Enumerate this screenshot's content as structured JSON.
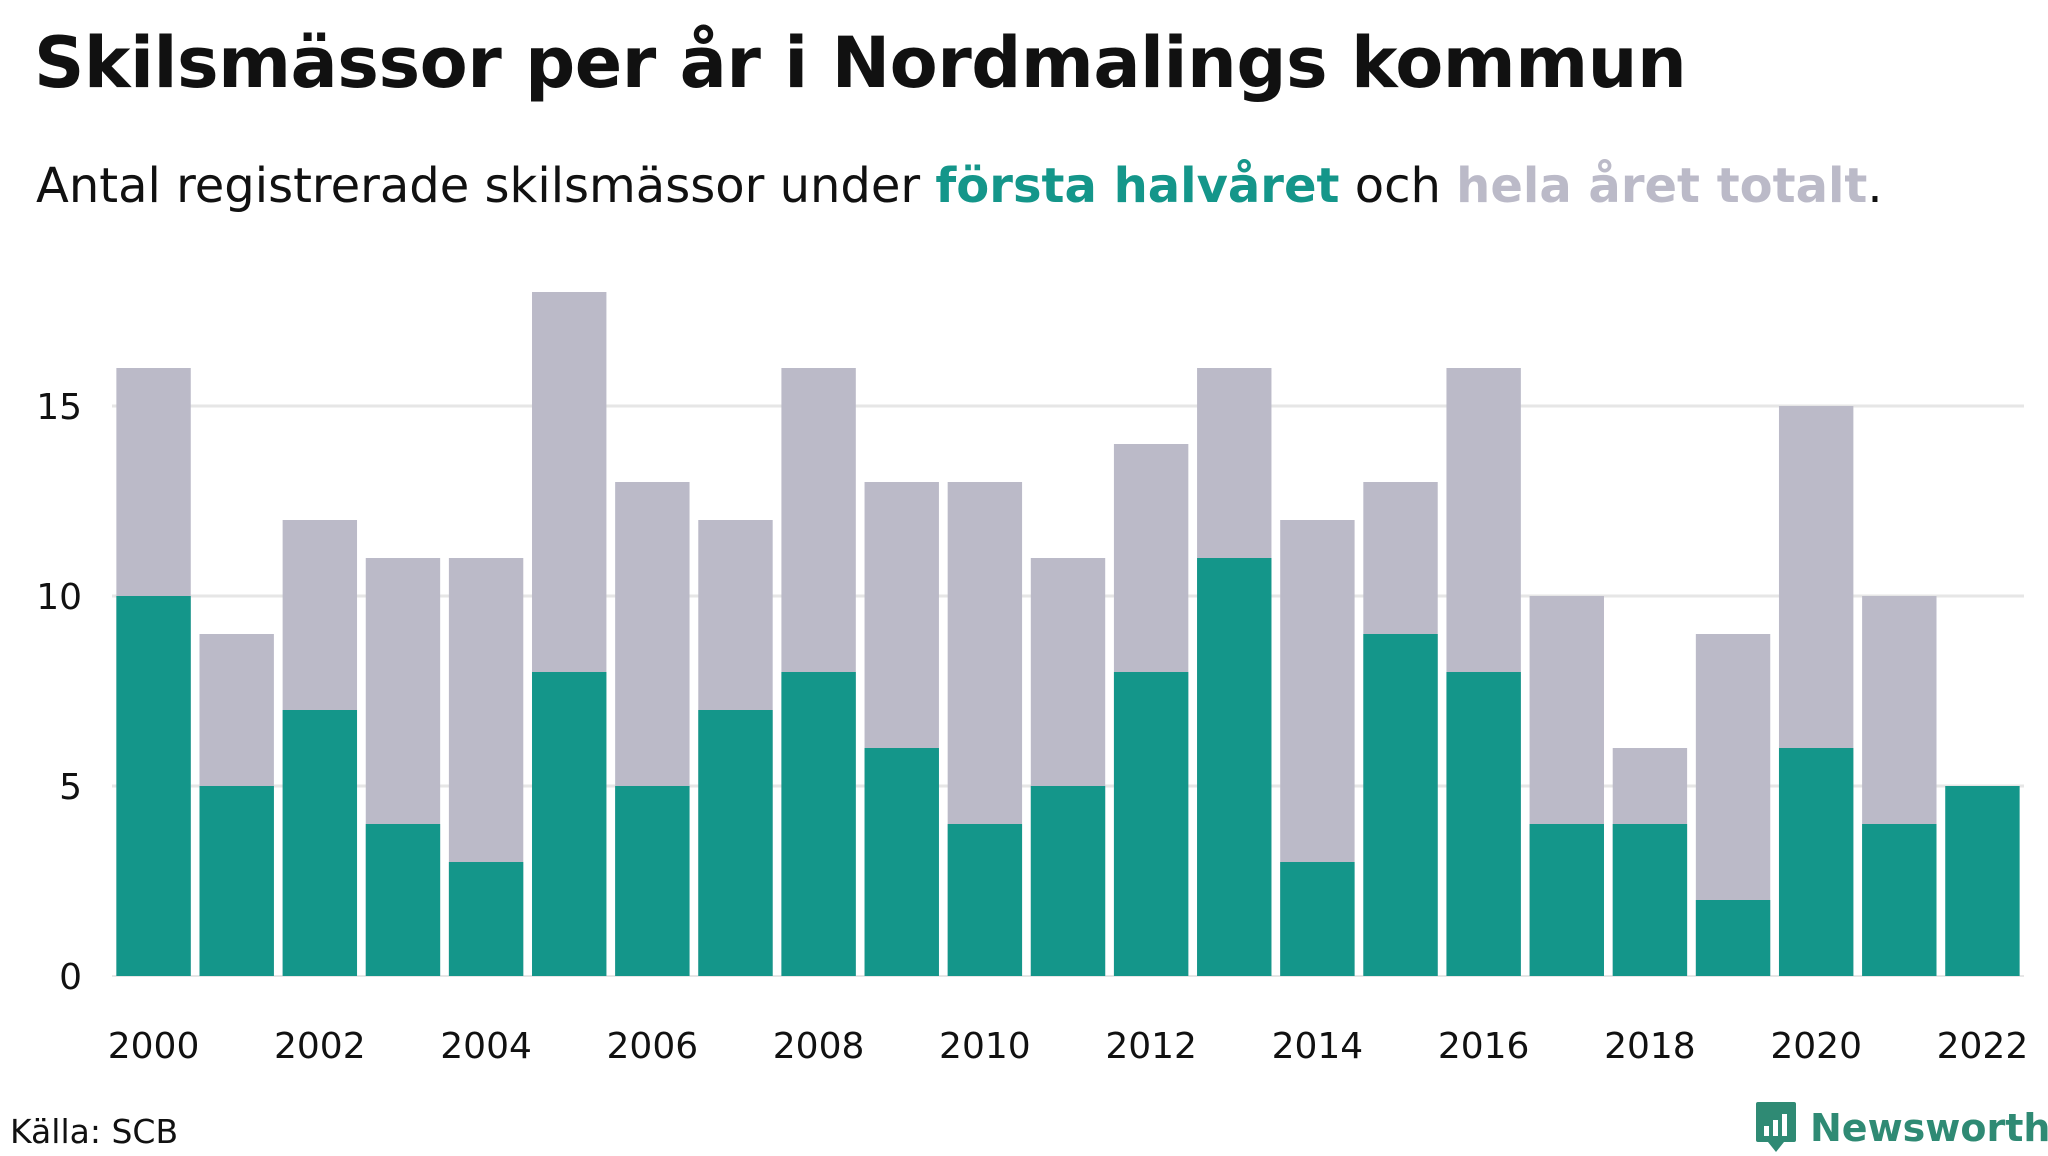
{
  "title": "Skilsmässor per år i Nordmalings kommun",
  "subtitle": {
    "prefix": "Antal registrerade skilsmässor under ",
    "highlight_first": "första halvåret",
    "middle": " och ",
    "highlight_total": "hela året totalt",
    "suffix": "."
  },
  "colors": {
    "first_half": "#14968a",
    "total": "#bbbac8",
    "grid": "#e6e6e6",
    "logo": "#2f8a74"
  },
  "chart_data": {
    "type": "bar",
    "stacked": "overlay",
    "categories": [
      "2000",
      "2001",
      "2002",
      "2003",
      "2004",
      "2005",
      "2006",
      "2007",
      "2008",
      "2009",
      "2010",
      "2011",
      "2012",
      "2013",
      "2014",
      "2015",
      "2016",
      "2017",
      "2018",
      "2019",
      "2020",
      "2021",
      "2022"
    ],
    "x_tick_labels": [
      "2000",
      "2002",
      "2004",
      "2006",
      "2008",
      "2010",
      "2012",
      "2014",
      "2016",
      "2018",
      "2020",
      "2022"
    ],
    "series": [
      {
        "name": "hela året totalt",
        "values": [
          16,
          9,
          12,
          11,
          11,
          18,
          13,
          12,
          16,
          13,
          13,
          11,
          14,
          16,
          12,
          13,
          16,
          10,
          6,
          9,
          15,
          10,
          null
        ]
      },
      {
        "name": "första halvåret",
        "values": [
          10,
          5,
          7,
          4,
          3,
          8,
          5,
          7,
          8,
          6,
          4,
          5,
          8,
          11,
          3,
          9,
          8,
          4,
          4,
          2,
          6,
          4,
          5
        ]
      }
    ],
    "y_ticks": [
      0,
      5,
      10,
      15
    ],
    "ylim": [
      0,
      18
    ],
    "grid": true,
    "xlabel": "",
    "ylabel": ""
  },
  "source": "Källa: SCB",
  "logo": {
    "icon": "newsworthy-chart-icon",
    "text": "Newsworthy"
  }
}
